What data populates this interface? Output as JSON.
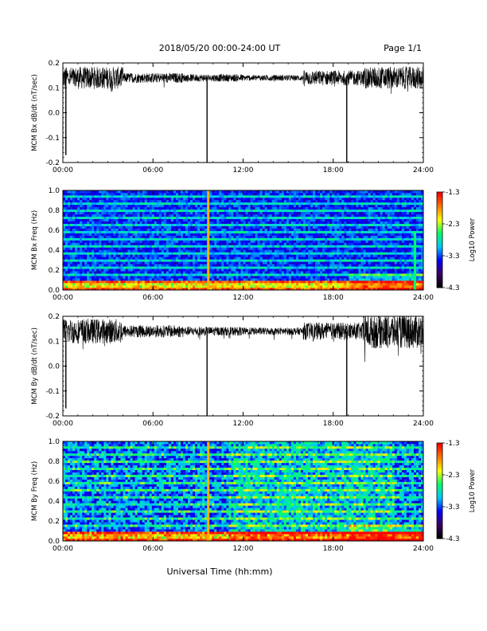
{
  "header": {
    "date_range": "2018/05/20  00:00-24:00 UT",
    "page": "Page 1/1"
  },
  "xaxis": {
    "label": "Universal Time (hh:mm)",
    "ticks": [
      "00:00",
      "06:00",
      "12:00",
      "18:00",
      "24:00"
    ],
    "range_hours": [
      0,
      24
    ]
  },
  "colorbar": {
    "label": "Log10 Power",
    "ticks": [
      "-1.3",
      "-2.3",
      "-3.3",
      "-4.3"
    ],
    "range": [
      -4.3,
      -1.3
    ],
    "colors": [
      "#000000",
      "#3c0064",
      "#0000ff",
      "#00c8ff",
      "#00ff64",
      "#ffff00",
      "#ff7800",
      "#ff0000"
    ]
  },
  "chart_data": [
    {
      "type": "line",
      "id": "bx-series",
      "ylabel": "MCM Bx dB/dt (nT/sec)",
      "ylim": [
        -0.2,
        0.2
      ],
      "yticks": [
        "0.2",
        "0.1",
        "0.0",
        "-0.1",
        "-0.2"
      ],
      "baseline": 0.14,
      "noise": [
        0.045,
        0.02,
        0.015,
        0.012,
        0.03,
        0.045
      ],
      "spikes": [
        {
          "x_hours": 0.2,
          "y": -0.17
        },
        {
          "x_hours": 9.6,
          "y": -0.2
        },
        {
          "x_hours": 18.9,
          "y": -0.2
        }
      ]
    },
    {
      "type": "heatmap",
      "id": "bx-spectrogram",
      "ylabel": "MCM Bx Freq (Hz)",
      "ylim": [
        0.0,
        1.0
      ],
      "yticks": [
        "1.0",
        "0.8",
        "0.6",
        "0.4",
        "0.2",
        "0.0"
      ],
      "zlim": [
        -4.3,
        -1.3
      ],
      "profile": "quiet"
    },
    {
      "type": "line",
      "id": "by-series",
      "ylabel": "MCM By dB/dt (nT/sec)",
      "ylim": [
        -0.2,
        0.2
      ],
      "yticks": [
        "0.2",
        "0.1",
        "0.0",
        "-0.1",
        "-0.2"
      ],
      "baseline": 0.14,
      "noise": [
        0.05,
        0.025,
        0.018,
        0.015,
        0.035,
        0.07
      ],
      "spikes": [
        {
          "x_hours": 0.2,
          "y": -0.17
        },
        {
          "x_hours": 9.6,
          "y": -0.2
        },
        {
          "x_hours": 18.9,
          "y": -0.2
        }
      ]
    },
    {
      "type": "heatmap",
      "id": "by-spectrogram",
      "ylabel": "MCM By Freq (Hz)",
      "ylim": [
        0.0,
        1.0
      ],
      "yticks": [
        "1.0",
        "0.8",
        "0.6",
        "0.4",
        "0.2",
        "0.0"
      ],
      "zlim": [
        -4.3,
        -1.3
      ],
      "profile": "active"
    }
  ]
}
